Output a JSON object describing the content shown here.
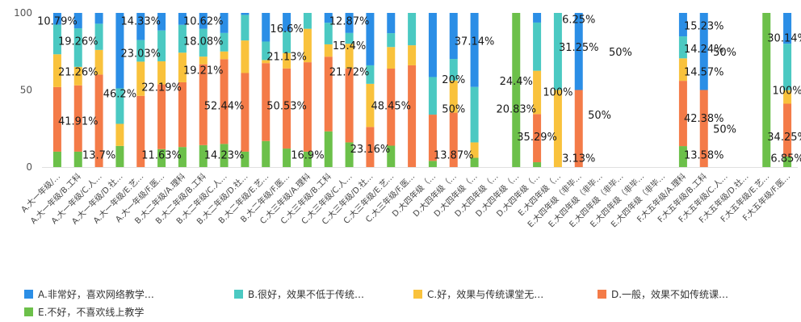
{
  "chart_data": {
    "type": "bar",
    "stacked": true,
    "ylim": [
      0,
      100
    ],
    "yticks": [
      0,
      50,
      100
    ],
    "grid": false,
    "legend_position": "bottom",
    "categories": [
      "A.大一年级/…",
      "A.大一年级/B.工科",
      "A.大一年级/C.人…",
      "A.大一年级/D.社…",
      "A.大一年级/E.艺…",
      "A.大一年级/F.医…",
      "B.大二年级/A.理科",
      "B.大二年级/B.工科",
      "B.大二年级/C.人…",
      "B.大二年级/D.社…",
      "B.大二年级/E.艺…",
      "B.大二年级/F.医…",
      "C.大三年级/A.理科",
      "C.大三年级/B.工科",
      "C.大三年级/C.人…",
      "C.大三年级/D.社…",
      "C.大三年级/E.艺…",
      "C.大三年级/F.医…",
      "D.大四年级（…",
      "D.大四年级（…",
      "D.大四年级（…",
      "D.大四年级（…",
      "D.大四年级（…",
      "D.大四年级（…",
      "E.大四年级（…",
      "E.大四年级（非毕…",
      "E.大四年级（非毕…",
      "E.大四年级（非毕…",
      "E.大四年级（非毕…",
      "E.大四年级（非毕…",
      "F.大五年级/A.理科",
      "F.大五年级/B.工科",
      "F.大五年级/C.人…",
      "F.大五年级/D.社…",
      "F.大五年级/E.艺…",
      "F.大五年级/F.医…"
    ],
    "series": [
      {
        "name": "E.不好，不喜欢线上教学",
        "color": "#6cc04a",
        "values": [
          10,
          10,
          0,
          13.7,
          0,
          11.63,
          13,
          14.23,
          15,
          10,
          16.9,
          12,
          10,
          23.16,
          16,
          0,
          13.87,
          0,
          4,
          0,
          6,
          0,
          100,
          3.13,
          0,
          0,
          0,
          0,
          0,
          0,
          13.58,
          0,
          0,
          0,
          100,
          6.85
        ]
      },
      {
        "name": "D.一般，效果不如传统课…",
        "color": "#f47b48",
        "values": [
          41.91,
          43,
          60,
          0,
          46.2,
          42,
          42,
          52.44,
          55,
          51,
          50.53,
          52,
          58,
          48.45,
          48,
          26,
          50,
          66,
          30,
          35.29,
          0,
          0,
          0,
          31.25,
          0,
          50,
          0,
          0,
          0,
          0,
          42.38,
          50,
          0,
          0,
          0,
          34.25
        ]
      },
      {
        "name": "C.好，效果与传统课堂无…",
        "color": "#f9c23c",
        "values": [
          21.26,
          12,
          16,
          14.33,
          22.19,
          15,
          19.21,
          5,
          5,
          21.13,
          2,
          10,
          21.72,
          8,
          16,
          28,
          14,
          13,
          0,
          20.83,
          10,
          0,
          0,
          28.12,
          50,
          0,
          0,
          0,
          0,
          0,
          14.57,
          0,
          0,
          0,
          0,
          8.76
        ]
      },
      {
        "name": "B.很好，效果不低于传统…",
        "color": "#4bc9c2",
        "values": [
          19.26,
          25,
          17,
          23.03,
          14,
          20,
          18.08,
          18,
          12,
          16.6,
          12,
          14,
          15.4,
          14,
          7,
          12,
          9,
          21,
          24.4,
          14,
          36,
          0,
          0,
          31.25,
          50,
          0,
          0,
          0,
          0,
          0,
          14.24,
          0,
          0,
          0,
          0,
          30.14
        ]
      },
      {
        "name": "A.非常好，喜欢网络教学…",
        "color": "#2b8ee6",
        "values": [
          10.79,
          10,
          7,
          48.97,
          17.61,
          11.37,
          10.62,
          10.33,
          13,
          1.27,
          18.57,
          12,
          12.87,
          6.39,
          13,
          34,
          13.13,
          0,
          41.6,
          29.88,
          48,
          0,
          0,
          6.25,
          0,
          50,
          0,
          0,
          0,
          0,
          15.23,
          50,
          0,
          0,
          0,
          20
        ]
      }
    ],
    "data_labels": [
      {
        "text": "10.79%",
        "cat": 0,
        "y": 95
      },
      {
        "text": "19.26%",
        "cat": 1,
        "y": 82
      },
      {
        "text": "21.26%",
        "cat": 1,
        "y": 62
      },
      {
        "text": "41.91%",
        "cat": 1,
        "y": 30
      },
      {
        "text": "13.7%",
        "cat": 2,
        "y": 8
      },
      {
        "text": "14.33%",
        "cat": 4,
        "y": 95
      },
      {
        "text": "23.03%",
        "cat": 4,
        "y": 74
      },
      {
        "text": "46.2%",
        "cat": 3,
        "y": 48
      },
      {
        "text": "22.19%",
        "cat": 5,
        "y": 52
      },
      {
        "text": "11.63%",
        "cat": 5,
        "y": 8
      },
      {
        "text": "10.62%",
        "cat": 7,
        "y": 95
      },
      {
        "text": "18.08%",
        "cat": 7,
        "y": 82
      },
      {
        "text": "19.21%",
        "cat": 7,
        "y": 63
      },
      {
        "text": "52.44%",
        "cat": 8,
        "y": 40
      },
      {
        "text": "14.23%",
        "cat": 8,
        "y": 8
      },
      {
        "text": "16.6%",
        "cat": 11,
        "y": 90
      },
      {
        "text": "21.13%",
        "cat": 11,
        "y": 72
      },
      {
        "text": "50.53%",
        "cat": 11,
        "y": 40
      },
      {
        "text": "16.9%",
        "cat": 12,
        "y": 8
      },
      {
        "text": "12.87%",
        "cat": 14,
        "y": 95
      },
      {
        "text": "15.4%",
        "cat": 14,
        "y": 79
      },
      {
        "text": "21.72%",
        "cat": 14,
        "y": 62
      },
      {
        "text": "48.45%",
        "cat": 16,
        "y": 40
      },
      {
        "text": "23.16%",
        "cat": 15,
        "y": 12
      },
      {
        "text": "20%",
        "cat": 19,
        "y": 57
      },
      {
        "text": "13.87%",
        "cat": 19,
        "y": 8
      },
      {
        "text": "37.14%",
        "cat": 20,
        "y": 82
      },
      {
        "text": "50%",
        "cat": 19,
        "y": 38
      },
      {
        "text": "24.4%",
        "cat": 22,
        "y": 56
      },
      {
        "text": "20.83%",
        "cat": 22,
        "y": 38
      },
      {
        "text": "35.29%",
        "cat": 23,
        "y": 20
      },
      {
        "text": "100%",
        "cat": 24,
        "y": 49
      },
      {
        "text": "6.25%",
        "cat": 25,
        "y": 96
      },
      {
        "text": "31.25%",
        "cat": 25,
        "y": 78
      },
      {
        "text": "3.13%",
        "cat": 25,
        "y": 6
      },
      {
        "text": "50%",
        "cat": 27,
        "y": 75
      },
      {
        "text": "50%",
        "cat": 26,
        "y": 34
      },
      {
        "text": "15.23%",
        "cat": 31,
        "y": 92
      },
      {
        "text": "14.24%",
        "cat": 31,
        "y": 77
      },
      {
        "text": "14.57%",
        "cat": 31,
        "y": 62
      },
      {
        "text": "42.38%",
        "cat": 31,
        "y": 32
      },
      {
        "text": "13.58%",
        "cat": 31,
        "y": 8
      },
      {
        "text": "50%",
        "cat": 32,
        "y": 75
      },
      {
        "text": "50%",
        "cat": 32,
        "y": 25
      },
      {
        "text": "30.14%",
        "cat": 35,
        "y": 84
      },
      {
        "text": "100%",
        "cat": 35,
        "y": 50
      },
      {
        "text": "34.25%",
        "cat": 35,
        "y": 20
      },
      {
        "text": "6.85%",
        "cat": 35,
        "y": 6
      }
    ]
  },
  "legend": {
    "items": [
      {
        "label": "A.非常好，喜欢网络教学…",
        "color": "#2b8ee6"
      },
      {
        "label": "B.很好，效果不低于传统…",
        "color": "#4bc9c2"
      },
      {
        "label": "C.好，效果与传统课堂无…",
        "color": "#f9c23c"
      },
      {
        "label": "D.一般，效果不如传统课…",
        "color": "#f47b48"
      },
      {
        "label": "E.不好，不喜欢线上教学",
        "color": "#6cc04a"
      }
    ]
  }
}
